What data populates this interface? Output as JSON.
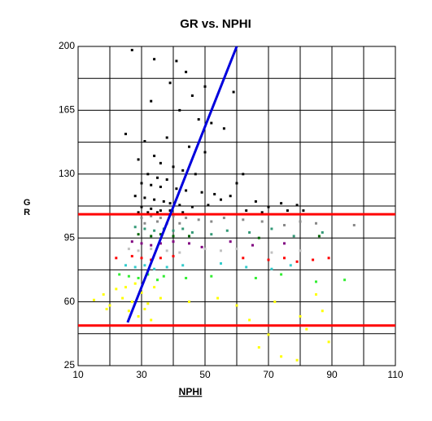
{
  "chart_data": {
    "type": "scatter",
    "title": "GR vs. NPHI",
    "x_label": "NPHI",
    "y_label": "GR",
    "xlim": [
      10,
      110
    ],
    "xticks": [
      10,
      30,
      50,
      70,
      90,
      110
    ],
    "ylim": [
      25,
      200
    ],
    "yticks": [
      25,
      60,
      95,
      130,
      165,
      200
    ],
    "grid": true,
    "reference_lines": {
      "color": "#ff0000",
      "values": [
        108,
        47
      ]
    },
    "trend_line": {
      "color": "#0000dd",
      "x": [
        25.6,
        60
      ],
      "values": [
        48.7,
        200
      ]
    },
    "series": [
      {
        "color": "#000000",
        "x": [
          27,
          34,
          41,
          44,
          39,
          50,
          59,
          46,
          33,
          42,
          48,
          52,
          56,
          25,
          38,
          31,
          45,
          50,
          34,
          29,
          36,
          40,
          43,
          47,
          32,
          35,
          38,
          30,
          33,
          36,
          41,
          44,
          49,
          53,
          28,
          31,
          34,
          37,
          39,
          42,
          46,
          51,
          55,
          58,
          30,
          33,
          36,
          29,
          32,
          35,
          39,
          43,
          66,
          70,
          74,
          79,
          81,
          63,
          68,
          76,
          60,
          62
        ],
        "values": [
          198,
          193,
          192,
          186,
          180,
          178,
          175,
          173,
          170,
          165,
          160,
          158,
          155,
          152,
          150,
          148,
          145,
          142,
          140,
          138,
          136,
          134,
          132,
          130,
          130,
          128,
          127,
          125,
          124,
          123,
          122,
          121,
          120,
          119,
          118,
          117,
          116,
          115,
          114,
          113,
          112,
          113,
          116,
          118,
          112,
          111,
          110,
          109,
          109,
          109,
          110,
          109,
          115,
          112,
          114,
          113,
          110,
          110,
          109,
          110,
          125,
          130
        ]
      },
      {
        "color": "#888888",
        "x": [
          30,
          33,
          36,
          40,
          44,
          48,
          52,
          56,
          62,
          68,
          75,
          80,
          85,
          97,
          31,
          35,
          38,
          42
        ],
        "values": [
          106,
          107,
          106,
          107,
          106,
          105,
          104,
          106,
          105,
          104,
          102,
          104,
          103,
          102,
          103,
          104,
          103,
          103
        ]
      },
      {
        "color": "#339977",
        "x": [
          28,
          31,
          34,
          37,
          40,
          43,
          46,
          52,
          57,
          64,
          71,
          78,
          87
        ],
        "values": [
          101,
          100,
          99,
          100,
          99,
          100,
          98,
          97,
          99,
          98,
          100,
          96,
          98
        ]
      },
      {
        "color": "#006400",
        "x": [
          29,
          33,
          36,
          40,
          45,
          67,
          86
        ],
        "values": [
          97,
          96,
          97,
          96,
          96,
          95,
          96
        ]
      },
      {
        "color": "#800080",
        "x": [
          27,
          30,
          33,
          36,
          40,
          45,
          49,
          58,
          65,
          75
        ],
        "values": [
          93,
          92,
          91,
          92,
          93,
          92,
          90,
          93,
          91,
          92
        ]
      },
      {
        "color": "#c0c0c0",
        "x": [
          26,
          29,
          33,
          38,
          42,
          50,
          55,
          60,
          71,
          80
        ],
        "values": [
          89,
          88,
          89,
          88,
          87,
          89,
          88,
          89,
          87,
          88
        ]
      },
      {
        "color": "#ff0000",
        "x": [
          22,
          27,
          30,
          33,
          36,
          40,
          62,
          70,
          75,
          79,
          84,
          89
        ],
        "values": [
          84,
          85,
          84,
          83,
          84,
          85,
          84,
          83,
          84,
          82,
          83,
          84
        ]
      },
      {
        "color": "#33cccc",
        "x": [
          25,
          28,
          31,
          34,
          38,
          43,
          55,
          63,
          71,
          77
        ],
        "values": [
          80,
          79,
          80,
          78,
          79,
          80,
          81,
          79,
          78,
          80
        ]
      },
      {
        "color": "#33ee33",
        "x": [
          23,
          26,
          29,
          32,
          35,
          37,
          44,
          52,
          66,
          74,
          85,
          94
        ],
        "values": [
          75,
          74,
          73,
          75,
          72,
          74,
          73,
          74,
          73,
          75,
          71,
          72
        ]
      },
      {
        "color": "#ffff00",
        "x": [
          15,
          18,
          20,
          22,
          24,
          26,
          28,
          30,
          32,
          34,
          25,
          27,
          29,
          31,
          19,
          36,
          33,
          45,
          54,
          60,
          72,
          80,
          85,
          67,
          74,
          70,
          82,
          89,
          79,
          64,
          87
        ],
        "values": [
          61,
          64,
          58,
          67,
          62,
          55,
          70,
          65,
          59,
          68,
          68,
          60,
          52,
          56,
          56,
          62,
          50,
          60,
          62,
          58,
          60,
          52,
          64,
          35,
          30,
          42,
          45,
          38,
          28,
          50,
          55
        ]
      }
    ]
  }
}
